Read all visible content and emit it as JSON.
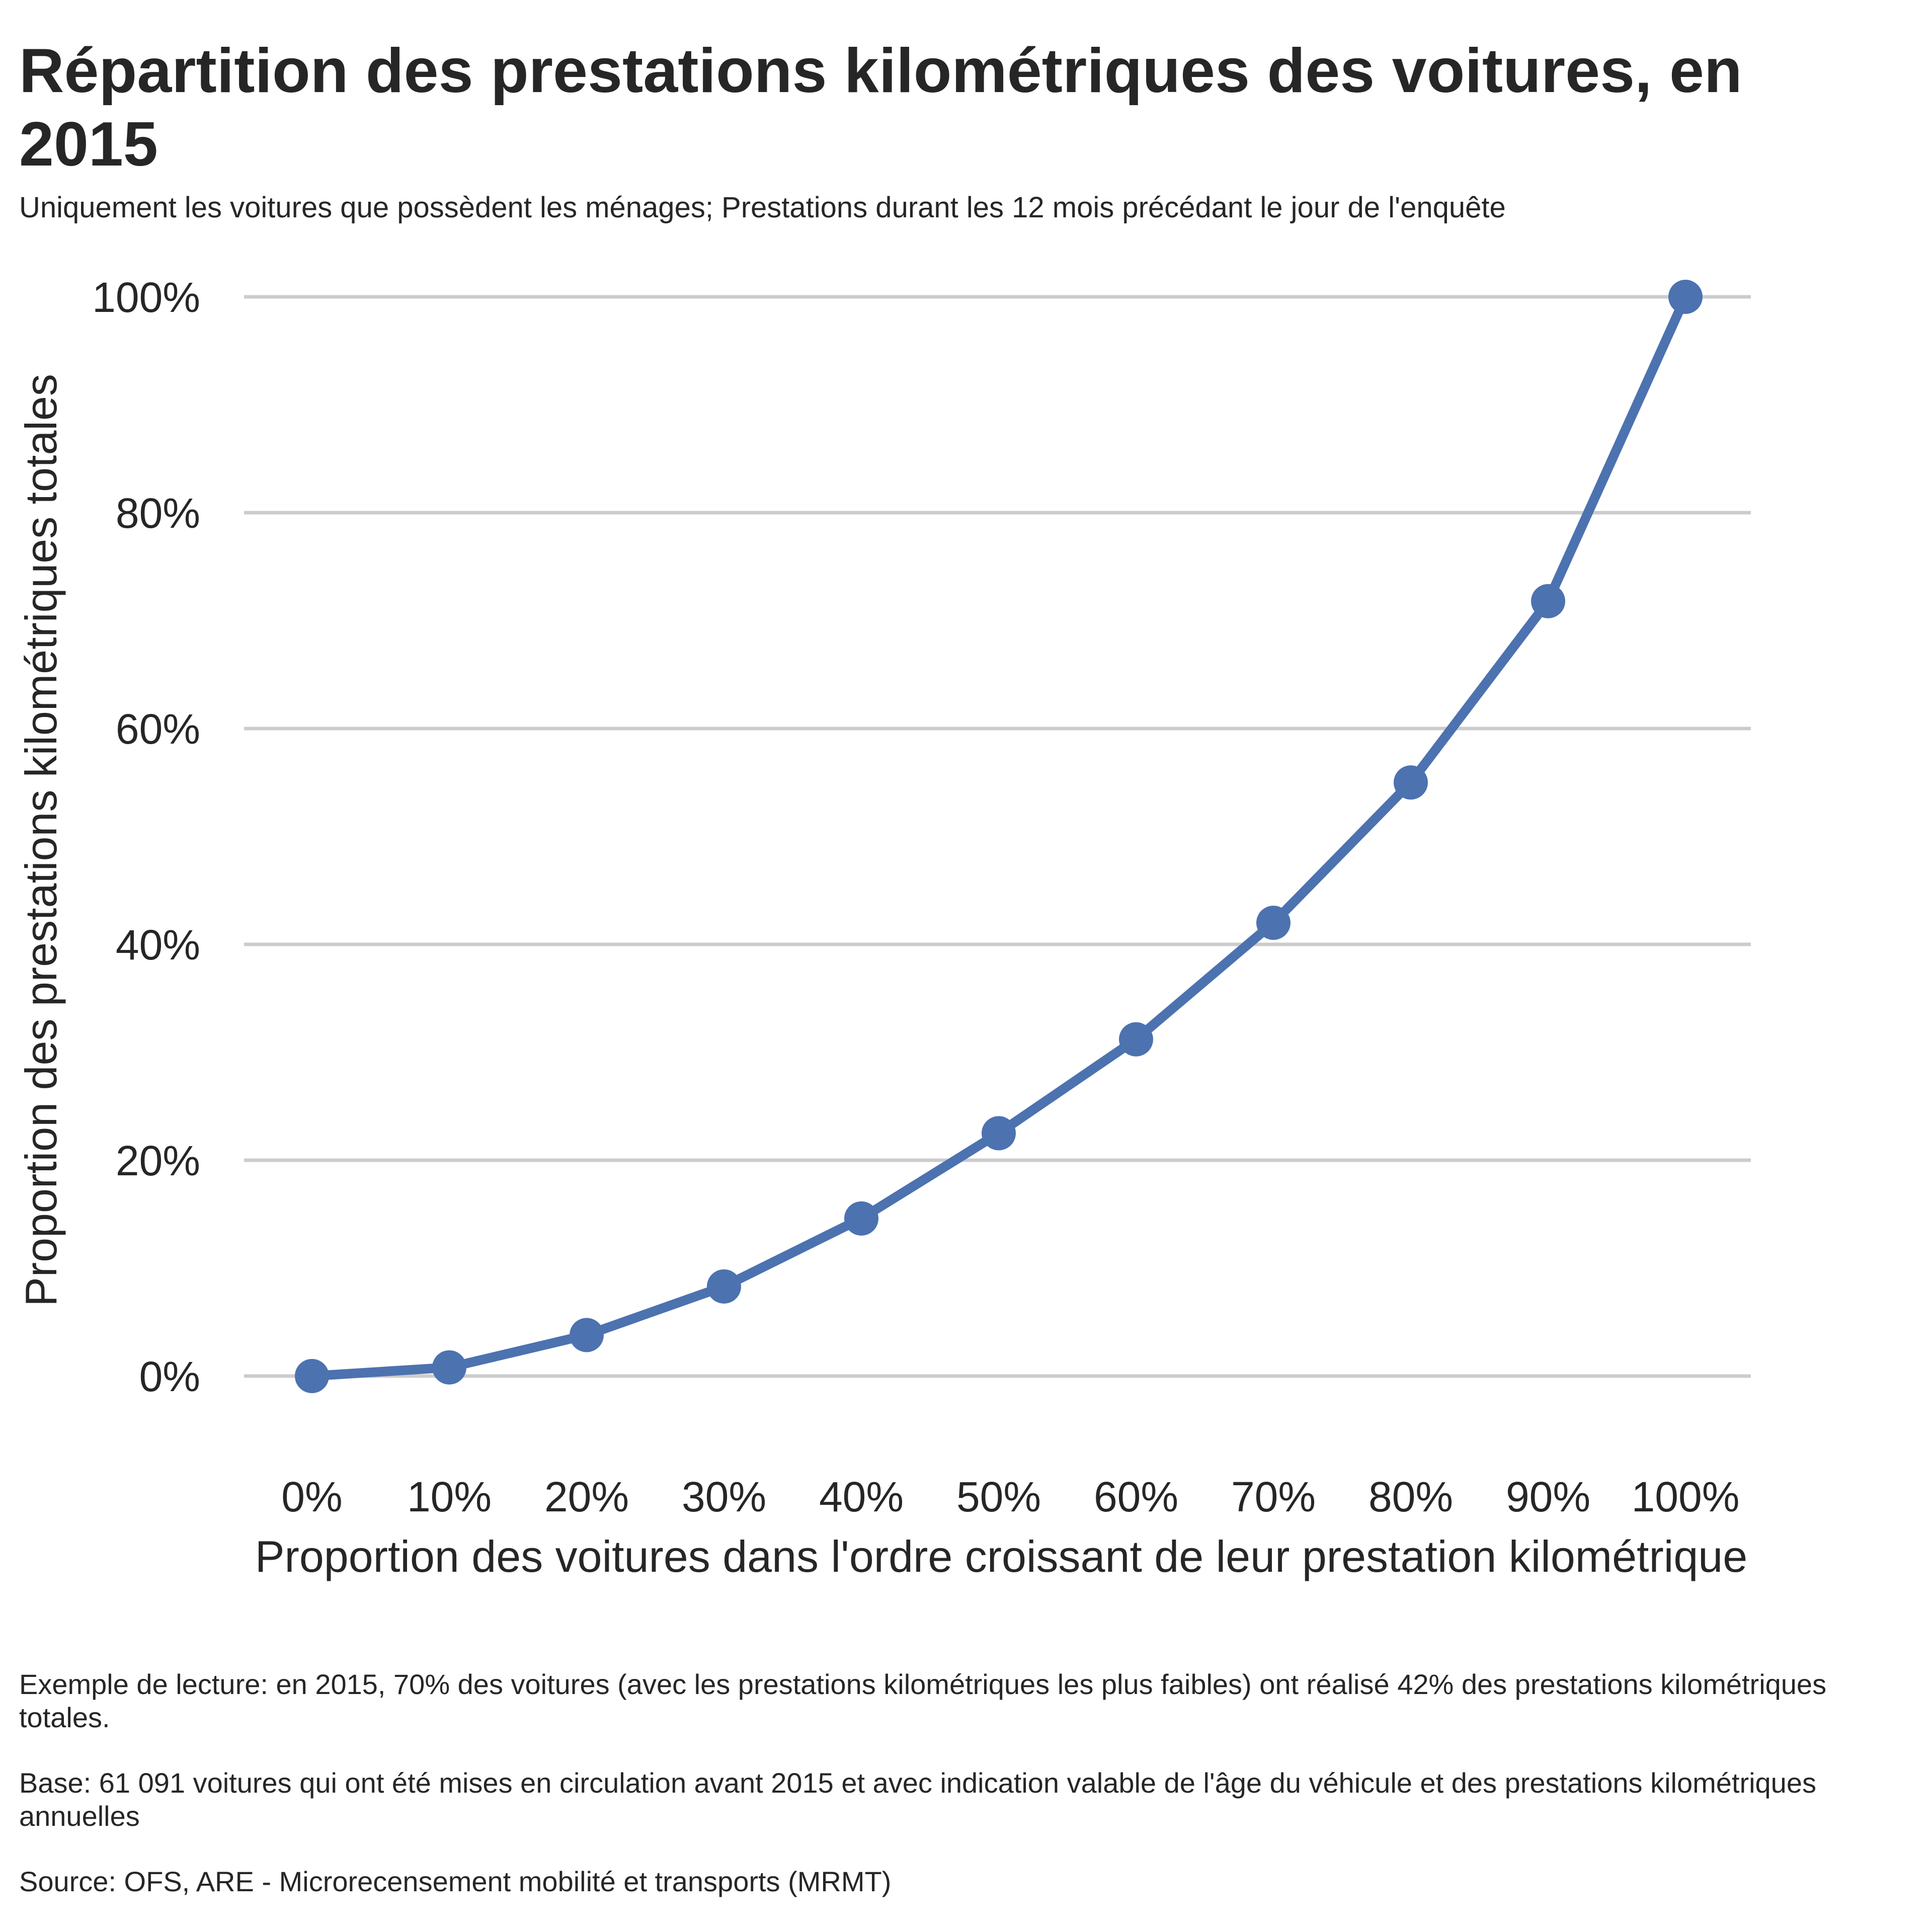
{
  "header": {
    "title": "Répartition des prestations kilométriques des voitures, en 2015",
    "subtitle": "Uniquement les voitures que possèdent les ménages; Prestations durant les 12 mois précédant le jour de l'enquête"
  },
  "chart_data": {
    "type": "line",
    "title": "Répartition des prestations kilométriques des voitures, en 2015",
    "xlabel": "Proportion des voitures dans l'ordre croissant de leur prestation kilométrique",
    "ylabel": "Proportion des prestations kilométriques totales",
    "x": [
      0,
      10,
      20,
      30,
      40,
      50,
      60,
      70,
      80,
      90,
      100
    ],
    "x_tick_labels": [
      "0%",
      "10%",
      "20%",
      "30%",
      "40%",
      "50%",
      "60%",
      "70%",
      "80%",
      "90%",
      "100%"
    ],
    "y_ticks": [
      0,
      20,
      40,
      60,
      80,
      100
    ],
    "y_tick_labels": [
      "0%",
      "20%",
      "40%",
      "60%",
      "80%",
      "100%"
    ],
    "ylim": [
      0,
      100
    ],
    "xlim": [
      0,
      100
    ],
    "grid": "horizontal",
    "legend": "none",
    "series": [
      {
        "values": [
          0,
          0.8,
          3.8,
          8.3,
          14.6,
          22.5,
          31.2,
          42.0,
          55.0,
          71.8,
          100.0
        ],
        "color": "#4c72b0"
      }
    ],
    "grid_color": "#cccccc"
  },
  "footnotes": {
    "example": "Exemple de lecture: en 2015, 70% des voitures (avec les prestations kilométriques les plus faibles) ont réalisé 42% des prestations kilométriques totales.",
    "base": "Base: 61 091 voitures qui ont été mises en circulation avant 2015 et avec indication valable de l'âge du véhicule et des prestations kilométriques annuelles",
    "source": "Source: OFS, ARE - Microrecensement mobilité et transports (MRMT)"
  }
}
